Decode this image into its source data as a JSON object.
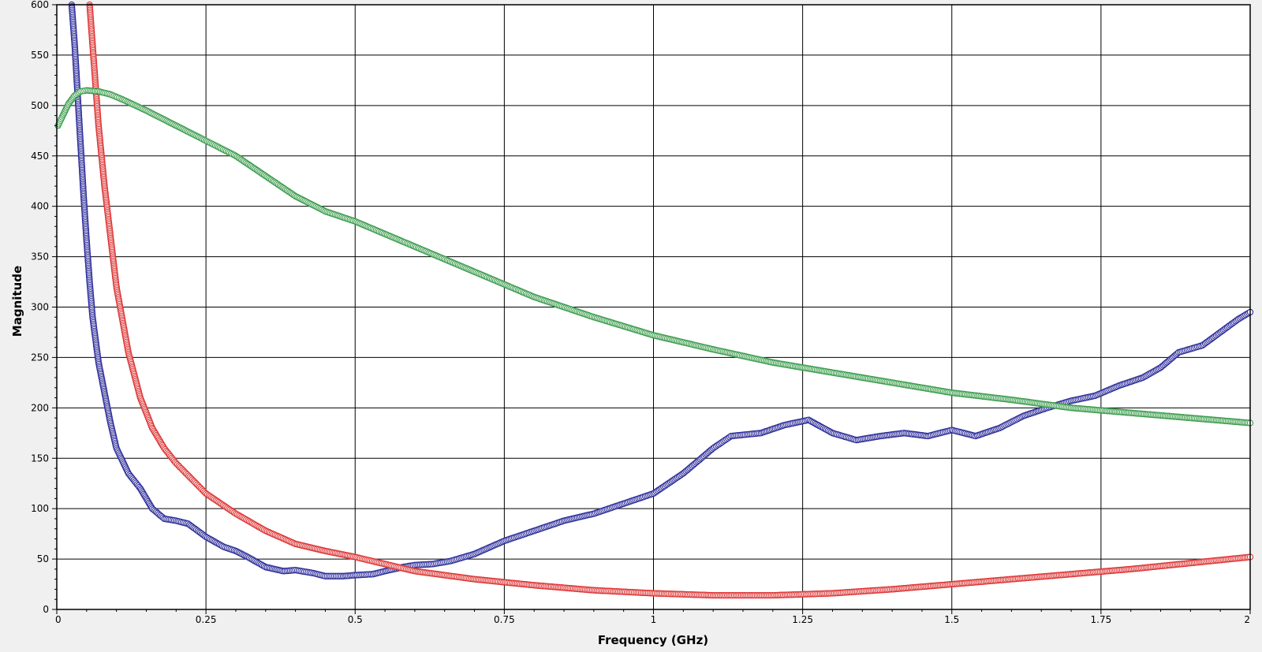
{
  "chart_data": {
    "type": "scatter",
    "title": "",
    "xlabel": "Frequency (GHz)",
    "ylabel": "Magnitude",
    "xlim": [
      0,
      2
    ],
    "ylim": [
      0,
      600
    ],
    "xticks": [
      0,
      0.25,
      0.5,
      0.75,
      1,
      1.25,
      1.5,
      1.75,
      2
    ],
    "xtick_labels": [
      "0",
      "0.25",
      "0.5",
      "0.75",
      "1",
      "1.25",
      "1.5",
      "1.75",
      "2"
    ],
    "yticks": [
      0,
      50,
      100,
      150,
      200,
      250,
      300,
      350,
      400,
      450,
      500,
      550,
      600
    ],
    "ytick_labels": [
      "0",
      "50",
      "100",
      "150",
      "200",
      "250",
      "300",
      "350",
      "400",
      "450",
      "500",
      "550",
      "600"
    ],
    "grid": true,
    "legend": "none",
    "marker": "open-circle",
    "series": [
      {
        "color": "#2b2b99",
        "x": [
          0.025,
          0.03,
          0.035,
          0.04,
          0.045,
          0.05,
          0.055,
          0.06,
          0.07,
          0.08,
          0.09,
          0.1,
          0.12,
          0.14,
          0.16,
          0.18,
          0.2,
          0.22,
          0.25,
          0.28,
          0.3,
          0.32,
          0.35,
          0.38,
          0.4,
          0.43,
          0.45,
          0.48,
          0.5,
          0.53,
          0.55,
          0.58,
          0.6,
          0.63,
          0.66,
          0.7,
          0.75,
          0.8,
          0.85,
          0.9,
          0.95,
          1.0,
          1.05,
          1.1,
          1.13,
          1.18,
          1.22,
          1.26,
          1.3,
          1.34,
          1.38,
          1.42,
          1.46,
          1.5,
          1.54,
          1.58,
          1.62,
          1.66,
          1.7,
          1.74,
          1.78,
          1.82,
          1.85,
          1.88,
          1.92,
          1.95,
          1.98,
          2.0
        ],
        "y": [
          600,
          560,
          510,
          460,
          410,
          365,
          325,
          290,
          245,
          215,
          185,
          160,
          135,
          120,
          100,
          90,
          88,
          85,
          72,
          62,
          58,
          52,
          42,
          38,
          39,
          36,
          33,
          33,
          34,
          35,
          38,
          42,
          44,
          45,
          48,
          55,
          68,
          78,
          88,
          95,
          105,
          115,
          135,
          160,
          172,
          175,
          183,
          188,
          175,
          168,
          172,
          175,
          172,
          178,
          172,
          180,
          192,
          200,
          207,
          212,
          222,
          230,
          240,
          255,
          262,
          275,
          288,
          295
        ]
      },
      {
        "color": "#dd3333",
        "x": [
          0.055,
          0.06,
          0.065,
          0.07,
          0.08,
          0.09,
          0.1,
          0.12,
          0.14,
          0.16,
          0.18,
          0.2,
          0.25,
          0.3,
          0.35,
          0.4,
          0.45,
          0.5,
          0.6,
          0.7,
          0.8,
          0.9,
          1.0,
          1.1,
          1.2,
          1.3,
          1.4,
          1.5,
          1.6,
          1.7,
          1.8,
          1.9,
          2.0
        ],
        "y": [
          600,
          560,
          520,
          480,
          420,
          370,
          320,
          255,
          210,
          180,
          160,
          145,
          115,
          95,
          78,
          65,
          58,
          52,
          38,
          30,
          24,
          19,
          16,
          14,
          14,
          16,
          20,
          25,
          30,
          35,
          40,
          46,
          52
        ]
      },
      {
        "color": "#3a9c4c",
        "x": [
          0.002,
          0.01,
          0.02,
          0.03,
          0.04,
          0.05,
          0.07,
          0.09,
          0.11,
          0.15,
          0.2,
          0.25,
          0.3,
          0.35,
          0.4,
          0.45,
          0.5,
          0.6,
          0.7,
          0.8,
          0.9,
          1.0,
          1.1,
          1.2,
          1.3,
          1.4,
          1.5,
          1.6,
          1.7,
          1.8,
          1.9,
          2.0
        ],
        "y": [
          480,
          490,
          502,
          510,
          514,
          515,
          514,
          511,
          506,
          495,
          480,
          465,
          450,
          430,
          410,
          395,
          385,
          360,
          335,
          310,
          290,
          272,
          258,
          245,
          235,
          225,
          215,
          208,
          200,
          195,
          190,
          185
        ]
      }
    ]
  }
}
